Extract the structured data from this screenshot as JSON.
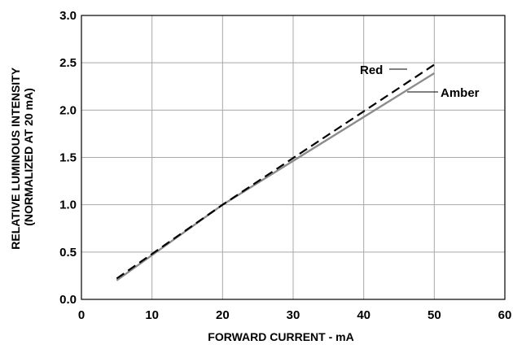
{
  "chart_data": {
    "type": "line",
    "xlabel": "FORWARD CURRENT - mA",
    "ylabel_line1": "RELATIVE LUMINOUS INTENSITY",
    "ylabel_line2": "(NORMALIZED AT 20 mA)",
    "xlim": [
      0,
      60
    ],
    "ylim": [
      0,
      3.0
    ],
    "x_ticks": [
      0,
      10,
      20,
      30,
      40,
      50,
      60
    ],
    "y_ticks": [
      "0.0",
      "0.5",
      "1.0",
      "1.5",
      "2.0",
      "2.5",
      "3.0"
    ],
    "grid": true,
    "series": [
      {
        "name": "Red",
        "style": "dashed",
        "color": "#000000",
        "x": [
          5,
          20,
          50
        ],
        "y": [
          0.22,
          1.0,
          2.48
        ]
      },
      {
        "name": "Amber",
        "style": "solid",
        "color": "#8c8c8c",
        "x": [
          5,
          20,
          50
        ],
        "y": [
          0.2,
          1.0,
          2.39
        ]
      }
    ]
  }
}
